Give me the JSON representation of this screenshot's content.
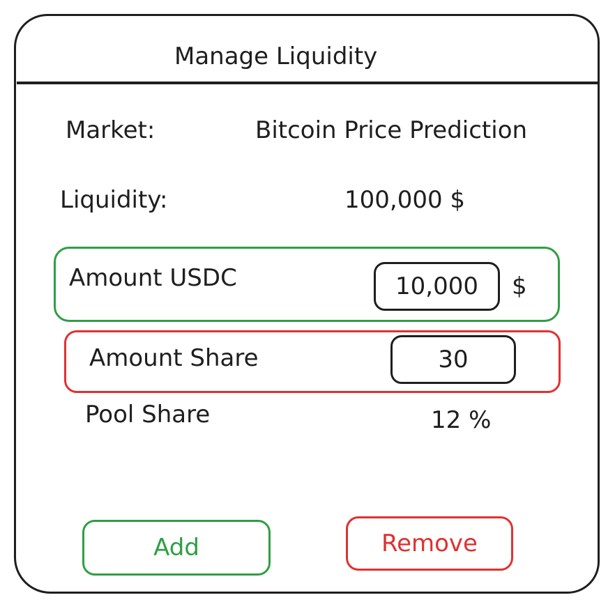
{
  "dialog": {
    "title": "Manage Liquidity"
  },
  "market": {
    "label": "Market:",
    "value": "Bitcoin Price Prediction"
  },
  "liquidity": {
    "label": "Liquidity:",
    "value": "100,000 $"
  },
  "amount_usdc": {
    "label": "Amount USDC",
    "value": "10,000",
    "unit": "$",
    "border_color": "#2f9e44"
  },
  "amount_share": {
    "label": "Amount Share",
    "value": "30",
    "border_color": "#e03131"
  },
  "pool_share": {
    "label": "Pool Share",
    "value": "12 %"
  },
  "actions": {
    "add_label": "Add",
    "add_color": "#2f9e44",
    "remove_label": "Remove",
    "remove_color": "#e03131"
  }
}
